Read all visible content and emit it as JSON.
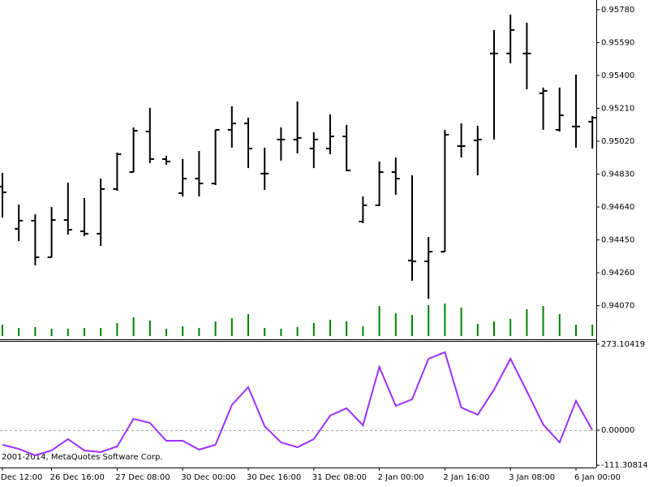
{
  "chart_data": [
    {
      "type": "ohlc",
      "categories": [
        "Dec 12:00",
        null,
        null,
        "26 Dec 16:00",
        null,
        null,
        null,
        "27 Dec 08:00",
        null,
        null,
        null,
        "30 Dec 00:00",
        null,
        null,
        null,
        "30 Dec 16:00",
        null,
        null,
        null,
        "31 Dec 08:00",
        null,
        null,
        null,
        "2 Jan 00:00",
        null,
        null,
        null,
        "2 Jan 16:00",
        null,
        null,
        null,
        "3 Jan 08:00",
        null,
        null,
        null,
        "6 Jan 00:00",
        null
      ],
      "open": [
        0.94758,
        0.94514,
        0.94561,
        0.9435,
        0.94565,
        0.945,
        0.94486,
        0.94744,
        0.94842,
        0.95076,
        0.94917,
        0.9472,
        0.94804,
        0.94776,
        0.95086,
        0.95123,
        0.94833,
        0.9503,
        0.9503,
        0.94978,
        0.94978,
        0.95048,
        0.94556,
        0.9465,
        0.94842,
        0.94331,
        0.94326,
        0.94382,
        0.94992,
        0.95025,
        0.95527,
        0.95527,
        0.95527,
        0.95297,
        0.95086,
        0.95105,
        0.95133
      ],
      "high": [
        0.94837,
        0.94654,
        0.94598,
        0.9464,
        0.94781,
        0.94692,
        0.94804,
        0.94955,
        0.951,
        0.95213,
        0.94936,
        0.94917,
        0.94964,
        0.95086,
        0.95222,
        0.95156,
        0.94983,
        0.951,
        0.9525,
        0.95072,
        0.95175,
        0.95114,
        0.94701,
        0.94903,
        0.94926,
        0.94823,
        0.94467,
        0.95086,
        0.95123,
        0.95109,
        0.95663,
        0.95752,
        0.95705,
        0.9533,
        0.9533,
        0.95405,
        0.95166
      ],
      "low": [
        0.94579,
        0.94443,
        0.94303,
        0.9435,
        0.94481,
        0.94471,
        0.94415,
        0.94734,
        0.94842,
        0.94894,
        0.94884,
        0.94701,
        0.94701,
        0.94767,
        0.94983,
        0.94865,
        0.94739,
        0.94908,
        0.9495,
        0.94865,
        0.94945,
        0.94847,
        0.94547,
        0.94645,
        0.94711,
        0.94214,
        0.9411,
        0.94382,
        0.94926,
        0.94823,
        0.9503,
        0.9547,
        0.9532,
        0.95086,
        0.95076,
        0.94983,
        0.94978
      ],
      "close": [
        0.94725,
        0.94561,
        0.9435,
        0.94565,
        0.94509,
        0.94486,
        0.94744,
        0.94945,
        0.95081,
        0.94917,
        0.94903,
        0.94804,
        0.94776,
        0.95086,
        0.95123,
        0.94978,
        0.94833,
        0.9503,
        0.95039,
        0.9503,
        0.95048,
        0.94851,
        0.9465,
        0.94842,
        0.94804,
        0.94326,
        0.94382,
        0.95058,
        0.94992,
        0.9503,
        0.95527,
        0.95663,
        0.95527,
        0.95311,
        0.9517,
        0.95105,
        0.95156
      ],
      "color": "#000000",
      "ylim": [
        0.93876,
        0.95836
      ],
      "yticks": [
        {
          "value": 0.9578,
          "label": "0.95780"
        },
        {
          "value": 0.9559,
          "label": "0.95590"
        },
        {
          "value": 0.954,
          "label": "0.95400"
        },
        {
          "value": 0.9521,
          "label": "0.95210"
        },
        {
          "value": 0.9502,
          "label": "0.95020"
        },
        {
          "value": 0.9483,
          "label": "0.94830"
        },
        {
          "value": 0.9464,
          "label": "0.94640"
        },
        {
          "value": 0.9445,
          "label": "0.94450"
        },
        {
          "value": 0.9426,
          "label": "0.94260"
        },
        {
          "value": 0.9407,
          "label": "0.94070"
        }
      ],
      "volume": {
        "color": "#008000",
        "ylim": [
          0,
          414
        ],
        "values": [
          14,
          10,
          11,
          9,
          9,
          10,
          10,
          16,
          23,
          19,
          9,
          12,
          10,
          18,
          22,
          27,
          10,
          9,
          11,
          16,
          20,
          18,
          12,
          37,
          28,
          26,
          38,
          40,
          35,
          15,
          18,
          21,
          33,
          37,
          27,
          14,
          14
        ]
      }
    },
    {
      "type": "line",
      "annotation": "2001-2014, MetaQuotes Software Corp.",
      "series": [
        {
          "color": "#9b30ff",
          "values": [
            -46.4,
            -59.3,
            -79.9,
            -64.4,
            -28.3,
            -64.4,
            -69.6,
            -51.5,
            36.1,
            23.2,
            -33.5,
            -33.5,
            -61.8,
            -46.4,
            79.9,
            136.6,
            12.9,
            -38.7,
            -54.1,
            -28.3,
            46.4,
            69.6,
            15.5,
            201.0,
            77.3,
            97.9,
            226.8,
            247.4,
            72.2,
            49.0,
            128.9,
            226.8,
            123.7,
            18.0,
            -38.7,
            92.8,
            0
          ]
        }
      ],
      "ylim": [
        -118.5,
        283.4
      ],
      "yticks": [
        {
          "value": 273.10419,
          "label": "273.10419"
        },
        {
          "value": 0,
          "label": "0.00000"
        },
        {
          "value": -111.30814,
          "label": "-111.30814"
        }
      ],
      "levels": [
        0
      ]
    }
  ]
}
